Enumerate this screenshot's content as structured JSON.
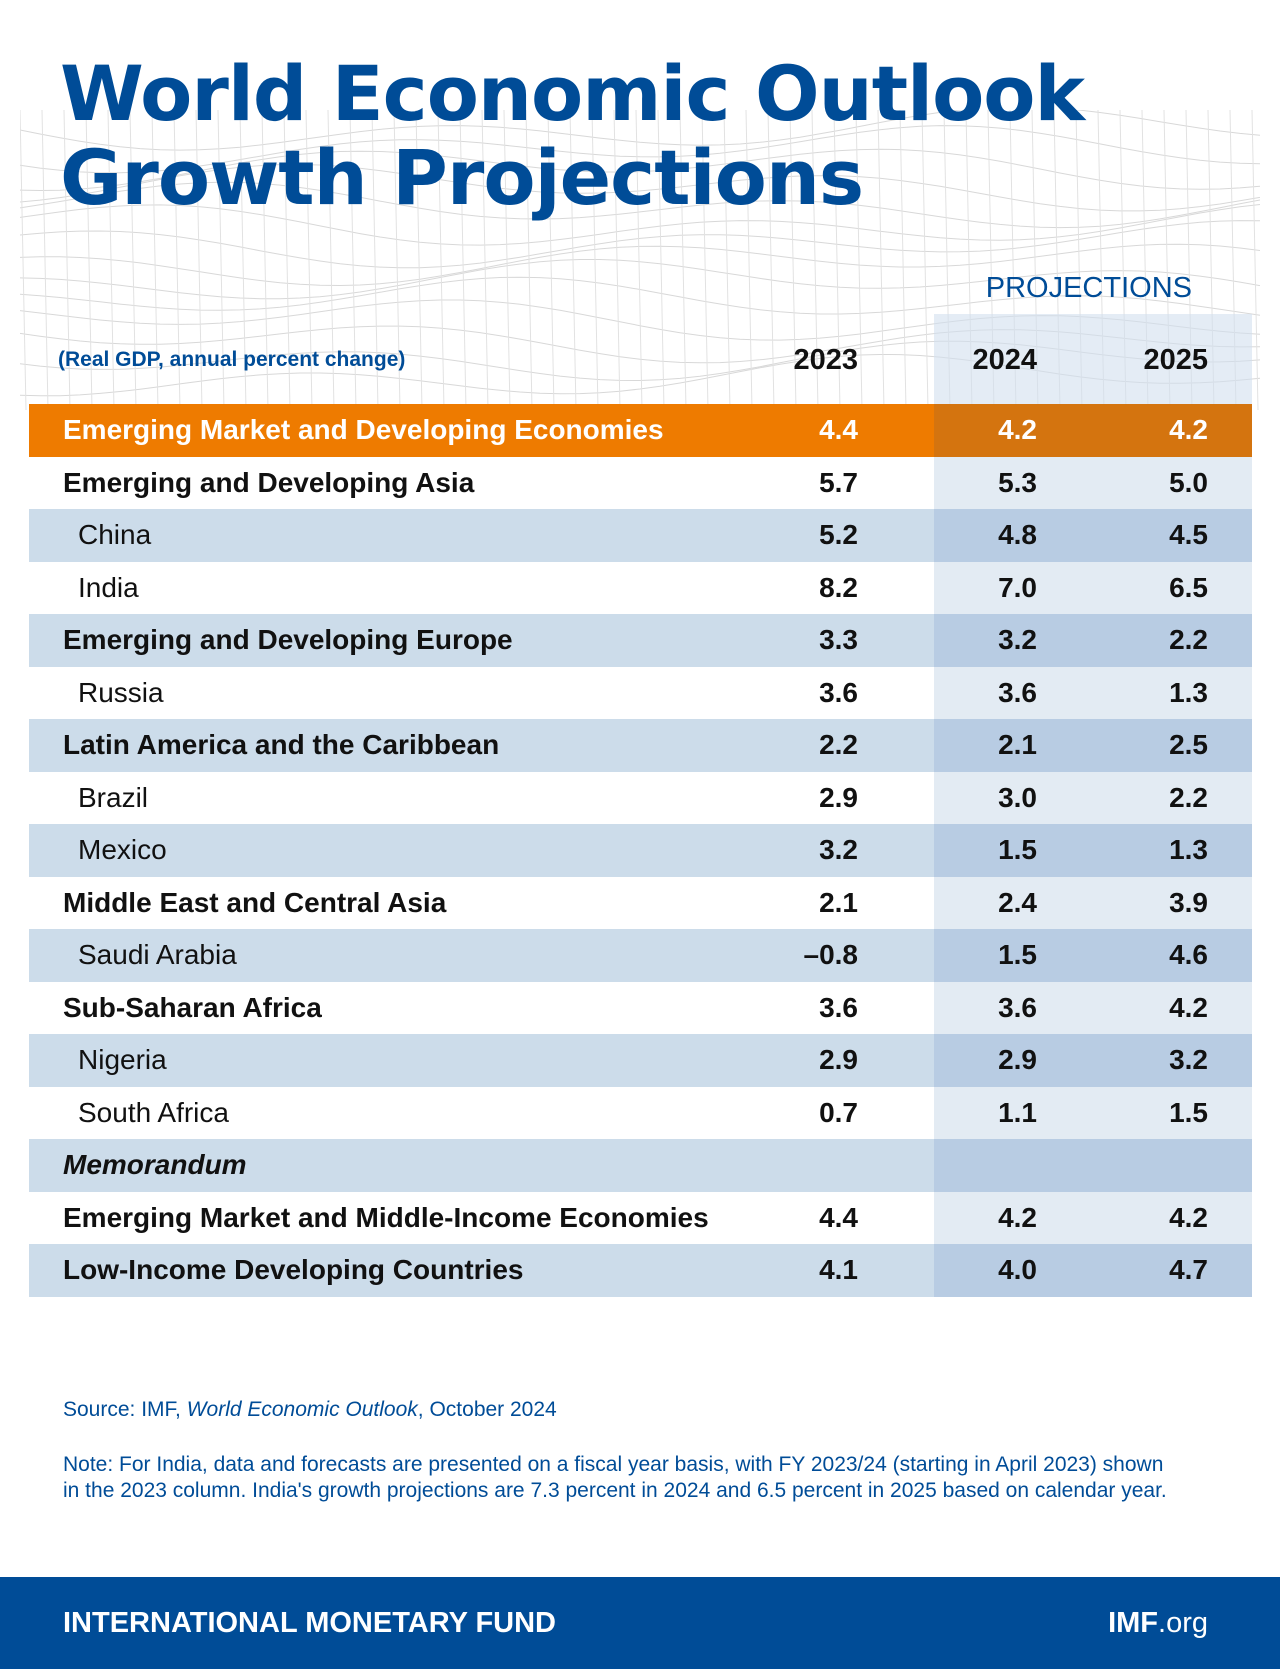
{
  "title": {
    "line1": "World Economic Outlook",
    "line2": "Growth Projections"
  },
  "projections_label": "PROJECTIONS",
  "subtitle": "(Real GDP, annual percent change)",
  "years": [
    "2023",
    "2024",
    "2025"
  ],
  "rows": [
    {
      "label": "Emerging Market and Developing Economies",
      "values": [
        "4.4",
        "4.2",
        "4.2"
      ]
    },
    {
      "label": "Emerging and Developing Asia",
      "values": [
        "5.7",
        "5.3",
        "5.0"
      ]
    },
    {
      "label": "China",
      "values": [
        "5.2",
        "4.8",
        "4.5"
      ]
    },
    {
      "label": "India",
      "values": [
        "8.2",
        "7.0",
        "6.5"
      ]
    },
    {
      "label": "Emerging and Developing Europe",
      "values": [
        "3.3",
        "3.2",
        "2.2"
      ]
    },
    {
      "label": "Russia",
      "values": [
        "3.6",
        "3.6",
        "1.3"
      ]
    },
    {
      "label": "Latin America and the Caribbean",
      "values": [
        "2.2",
        "2.1",
        "2.5"
      ]
    },
    {
      "label": "Brazil",
      "values": [
        "2.9",
        "3.0",
        "2.2"
      ]
    },
    {
      "label": "Mexico",
      "values": [
        "3.2",
        "1.5",
        "1.3"
      ]
    },
    {
      "label": "Middle East and Central Asia",
      "values": [
        "2.1",
        "2.4",
        "3.9"
      ]
    },
    {
      "label": "Saudi Arabia",
      "values": [
        "–0.8",
        "1.5",
        "4.6"
      ]
    },
    {
      "label": "Sub-Saharan Africa",
      "values": [
        "3.6",
        "3.6",
        "4.2"
      ]
    },
    {
      "label": "Nigeria",
      "values": [
        "2.9",
        "2.9",
        "3.2"
      ]
    },
    {
      "label": "South Africa",
      "values": [
        "0.7",
        "1.1",
        "1.5"
      ]
    },
    {
      "label": "Memorandum",
      "values": [
        "",
        "",
        ""
      ]
    },
    {
      "label": "Emerging Market and Middle-Income Economies",
      "values": [
        "4.4",
        "4.2",
        "4.2"
      ]
    },
    {
      "label": "Low-Income Developing Countries",
      "values": [
        "4.1",
        "4.0",
        "4.7"
      ]
    }
  ],
  "source": {
    "prefix": "Source: IMF, ",
    "title": "World Economic Outlook",
    "suffix": ", October 2024"
  },
  "note": "Note: For India, data and forecasts are presented on a fiscal year basis, with FY 2023/24 (starting in April 2023) shown in the 2023 column. India's growth projections are 7.3 percent in 2024 and 6.5 percent in 2025 based on calendar year.",
  "footer": {
    "org": "INTERNATIONAL MONETARY FUND",
    "site_bold": "IMF",
    "site_rest": ".org"
  },
  "colors": {
    "brand_blue": "#004C97",
    "highlight_orange": "#EE7B00",
    "row_blue": "#CCDCEA",
    "projection_shade": "#E3EBF3"
  }
}
